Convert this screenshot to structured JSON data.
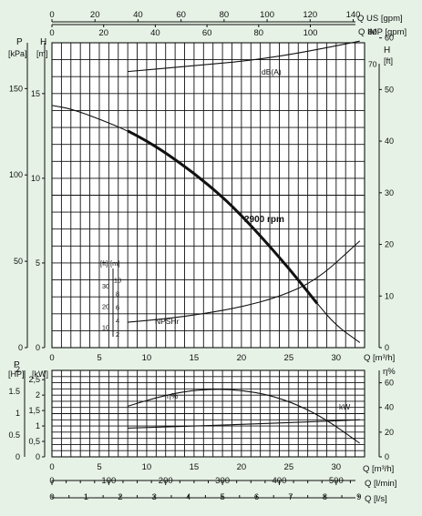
{
  "chart_data": [
    {
      "type": "line",
      "panel": "head-power",
      "top_axes": [
        {
          "label": "Q US [gpm]",
          "ticks": [
            0,
            20,
            40,
            60,
            80,
            100,
            120,
            140
          ]
        },
        {
          "label": "Q IMP [gpm]",
          "ticks": [
            0,
            20,
            40,
            60,
            80,
            100
          ]
        }
      ],
      "left_axes": [
        {
          "label": "P [kPa]",
          "ticks": [
            0,
            50,
            100,
            150
          ]
        },
        {
          "label": "H [m]",
          "ticks": [
            0,
            5,
            10,
            15
          ]
        }
      ],
      "right_axes": [
        {
          "label": "H [ft]",
          "ticks": [
            0,
            10,
            20,
            30,
            40,
            50,
            60
          ]
        },
        {
          "label": "dB(A)",
          "ticks": [
            70,
            80
          ]
        }
      ],
      "npsh_axes": [
        {
          "label": "[ft]",
          "ticks": [
            10,
            20,
            30
          ]
        },
        {
          "label": "[m]",
          "ticks": [
            2,
            4,
            6,
            8,
            10
          ]
        }
      ],
      "x_axis": {
        "label": "Q [m³/h]",
        "ticks": [
          0,
          5,
          10,
          15,
          20,
          25,
          30
        ],
        "range": [
          0,
          33
        ]
      },
      "y_range_m": [
        0,
        18
      ],
      "series": [
        {
          "name": "2900 rpm",
          "x": [
            0,
            2,
            5,
            8,
            10,
            12,
            15,
            18,
            20,
            22,
            25,
            28,
            30,
            32.5
          ],
          "y": [
            14.3,
            14.1,
            13.5,
            12.8,
            12.2,
            11.5,
            10.3,
            8.9,
            7.8,
            6.6,
            4.7,
            2.6,
            1.3,
            0.3
          ]
        },
        {
          "name": "dB(A)",
          "x": [
            8,
            12,
            16,
            20,
            24,
            28,
            32.5
          ],
          "y": [
            16.3,
            16.5,
            16.7,
            16.9,
            17.2,
            17.6,
            18.1
          ]
        },
        {
          "name": "NPSHr",
          "x": [
            8,
            12,
            16,
            20,
            24,
            28,
            32.5
          ],
          "y": [
            1.5,
            1.7,
            2.0,
            2.4,
            3.0,
            4.0,
            6.3
          ]
        }
      ]
    },
    {
      "type": "line",
      "panel": "power-efficiency",
      "left_axes": [
        {
          "label": "P [HP]",
          "ticks": [
            0,
            0.5,
            1,
            1.5,
            2
          ]
        },
        {
          "label": "[kW]",
          "ticks": [
            0,
            "0,5",
            1,
            "1,5",
            2,
            "2,5"
          ]
        }
      ],
      "right_axes": [
        {
          "label": "η%",
          "ticks": [
            0,
            20,
            40,
            60
          ]
        }
      ],
      "x_axis": {
        "label": "Q [m³/h]",
        "ticks": [
          0,
          5,
          10,
          15,
          20,
          25,
          30
        ],
        "range": [
          0,
          33
        ]
      },
      "y_range_kw": [
        0,
        2.8
      ],
      "series": [
        {
          "name": "η%",
          "x": [
            8,
            11,
            14,
            17,
            20,
            23,
            26,
            29,
            32.5
          ],
          "y": [
            41,
            48,
            53,
            55,
            54,
            50,
            42,
            30,
            11
          ]
        },
        {
          "name": "kW",
          "x": [
            8,
            14,
            20,
            26,
            32.5
          ],
          "y": [
            0.93,
            0.99,
            1.05,
            1.12,
            1.2
          ]
        }
      ],
      "bottom_axes": [
        {
          "label": "Q [l/min]",
          "ticks": [
            0,
            100,
            200,
            300,
            400,
            500
          ]
        },
        {
          "label": "Q [l/s]",
          "ticks": [
            0,
            1,
            2,
            3,
            4,
            5,
            6,
            7,
            8,
            9
          ]
        }
      ]
    }
  ],
  "labels": {
    "top_us": "Q US [gpm]",
    "top_imp": "Q IMP [gpm]",
    "left_p": "P",
    "left_kpa": "[kPa]",
    "left_h": "H",
    "left_m": "[m]",
    "right_h": "H",
    "right_ft": "[ft]",
    "db": "dB(A)",
    "rpm": "2900 rpm",
    "npsh": "NPSHr",
    "npsh_ft": "[ft]",
    "npsh_m": "[m]",
    "x_top": "Q [m³/h]",
    "low_p": "P",
    "low_hp": "[HP]",
    "low_kw": "[kW]",
    "eta_right": "η%",
    "eta": "η%",
    "kw": "kW",
    "x_low": "Q [m³/h]",
    "lmin": "Q [l/min]",
    "ls": "Q [l/s]"
  }
}
